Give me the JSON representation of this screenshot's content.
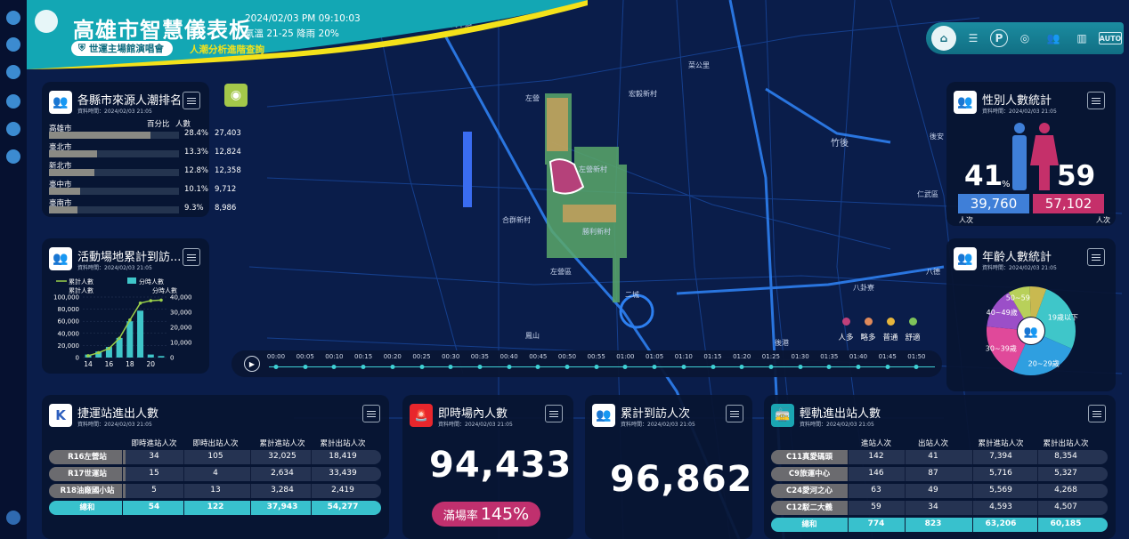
{
  "header": {
    "title": "高雄市智慧儀表板",
    "date": "2024/02/03 PM 09:10:03",
    "weather": "氣溫 21-25 降雨 20%",
    "event": "世運主場館演唱會",
    "link": "人潮分析進階查詢",
    "colors": {
      "banner": "#12a5b2",
      "accent": "#f4e21a"
    }
  },
  "toolbar": {
    "auto": "AUTO",
    "parking": "P"
  },
  "county": {
    "title": "各縣市來源人潮排名",
    "sub": "資料時間：2024/02/03 21:05",
    "col_pct": "百分比",
    "col_cnt": "人數",
    "rows": [
      {
        "name": "高雄市",
        "pct": "28.4%",
        "cnt": "27,403",
        "fill": 0.78
      },
      {
        "name": "臺北市",
        "pct": "13.3%",
        "cnt": "12,824",
        "fill": 0.37
      },
      {
        "name": "新北市",
        "pct": "12.8%",
        "cnt": "12,358",
        "fill": 0.35
      },
      {
        "name": "臺中市",
        "pct": "10.1%",
        "cnt": "9,712",
        "fill": 0.24
      },
      {
        "name": "臺南市",
        "pct": "9.3%",
        "cnt": "8,986",
        "fill": 0.22
      }
    ]
  },
  "venue": {
    "title": "活動場地累計到訪...",
    "sub": "資料時間：2024/02/03 21:05",
    "legend_line": "累計人數",
    "legend_bar": "分時人數",
    "ylabel_left": "累計人數",
    "ylabel_right": "分時人數",
    "left_ticks": [
      "100,000",
      "80,000",
      "60,000",
      "40,000",
      "20,000",
      "0"
    ],
    "right_ticks": [
      "40,000",
      "30,000",
      "20,000",
      "10,000",
      "0"
    ],
    "x_ticks": [
      "14",
      "16",
      "18",
      "20"
    ]
  },
  "chart_data": {
    "type": "bar",
    "title": "活動場地累計到訪...",
    "x": [
      14,
      15,
      16,
      17,
      18,
      19,
      20,
      21
    ],
    "series": [
      {
        "name": "分時人數",
        "type": "bar",
        "values": [
          2000,
          4000,
          7000,
          13000,
          24000,
          31000,
          2000,
          1000
        ]
      },
      {
        "name": "累計人數",
        "type": "line",
        "values": [
          3000,
          8000,
          15000,
          32000,
          62000,
          90000,
          94000,
          95000
        ]
      }
    ],
    "ylim_left": [
      0,
      100000
    ],
    "ylim_right": [
      0,
      40000
    ],
    "xlabel": "",
    "ylabel": "累計人數"
  },
  "gender": {
    "title": "性別人數統計",
    "sub": "資料時間：2024/02/03 21:05",
    "male_pct": "41",
    "female_pct": "59",
    "pct_sign": "%",
    "male_cnt": "39,760",
    "female_cnt": "57,102",
    "unit": "人次",
    "colors": {
      "male": "#3f7fd8",
      "female": "#c5306a"
    }
  },
  "age": {
    "title": "年齡人數統計",
    "sub": "資料時間：2024/02/03 21:05",
    "slices": [
      {
        "label": "19歲以下",
        "value": 26,
        "color": "#3fc6c9"
      },
      {
        "label": "20~29歲",
        "value": 25,
        "color": "#2f9fe0"
      },
      {
        "label": "30~39歲",
        "value": 20,
        "color": "#e0499a"
      },
      {
        "label": "40~49歲",
        "value": 15,
        "color": "#9b4fc8"
      },
      {
        "label": "50~59歲",
        "value": 8,
        "color": "#b8d05a"
      },
      {
        "label": "",
        "value": 6,
        "color": "#c9b950"
      }
    ]
  },
  "mrt": {
    "title": "捷運站進出人數",
    "sub": "資料時間：2024/02/03 21:05",
    "headers": [
      "即時進站人次",
      "即時出站人次",
      "累計進站人次",
      "累計出站人次"
    ],
    "rows": [
      {
        "name": "R16左營站",
        "v": [
          "34",
          "105",
          "32,025",
          "18,419"
        ]
      },
      {
        "name": "R17世運站",
        "v": [
          "15",
          "4",
          "2,634",
          "33,439"
        ]
      },
      {
        "name": "R18油廠國小站",
        "v": [
          "5",
          "13",
          "3,284",
          "2,419"
        ]
      }
    ],
    "total": {
      "name": "總和",
      "v": [
        "54",
        "122",
        "37,943",
        "54,277"
      ]
    }
  },
  "live": {
    "title": "即時場內人數",
    "sub": "資料時間：2024/02/03 21:05",
    "value": "94,433",
    "rate_label": "滿場率",
    "rate": "145%"
  },
  "visits": {
    "title": "累計到訪人次",
    "sub": "資料時間：2024/02/03 21:05",
    "value": "96,862"
  },
  "lrt": {
    "title": "輕軌進出站人數",
    "sub": "資料時間：2024/02/03 21:05",
    "headers": [
      "進站人次",
      "出站人次",
      "累計進站人次",
      "累計出站人次"
    ],
    "rows": [
      {
        "name": "C11真愛碼頭",
        "v": [
          "142",
          "41",
          "7,394",
          "8,354"
        ]
      },
      {
        "name": "C9旅運中心",
        "v": [
          "146",
          "87",
          "5,716",
          "5,327"
        ]
      },
      {
        "name": "C24愛河之心",
        "v": [
          "63",
          "49",
          "5,569",
          "4,268"
        ]
      },
      {
        "name": "C12駁二大義",
        "v": [
          "59",
          "34",
          "4,593",
          "4,507"
        ]
      }
    ],
    "total": {
      "name": "總和",
      "v": [
        "774",
        "823",
        "63,206",
        "60,185"
      ]
    }
  },
  "timeline": {
    "labels": [
      "00:00",
      "00:05",
      "00:10",
      "00:15",
      "00:20",
      "00:25",
      "00:30",
      "00:35",
      "00:40",
      "00:45",
      "00:50",
      "00:55",
      "01:00",
      "01:05",
      "01:10",
      "01:15",
      "01:20",
      "01:25",
      "01:30",
      "01:35",
      "01:40",
      "01:45",
      "01:50"
    ]
  },
  "map_legend": [
    {
      "label": "人多",
      "color": "#c0407a"
    },
    {
      "label": "略多",
      "color": "#e08a5a"
    },
    {
      "label": "普通",
      "color": "#e6b53c"
    },
    {
      "label": "舒適",
      "color": "#7fc35a"
    }
  ],
  "map_labels": [
    "高中港",
    "左營",
    "宏毅新村",
    "菜公里",
    "左營新村",
    "合群新村",
    "勝利新村",
    "左營區",
    "竹後",
    "後安",
    "仁武區",
    "八德",
    "二城",
    "鳳山",
    "後港",
    "八卦寮"
  ]
}
